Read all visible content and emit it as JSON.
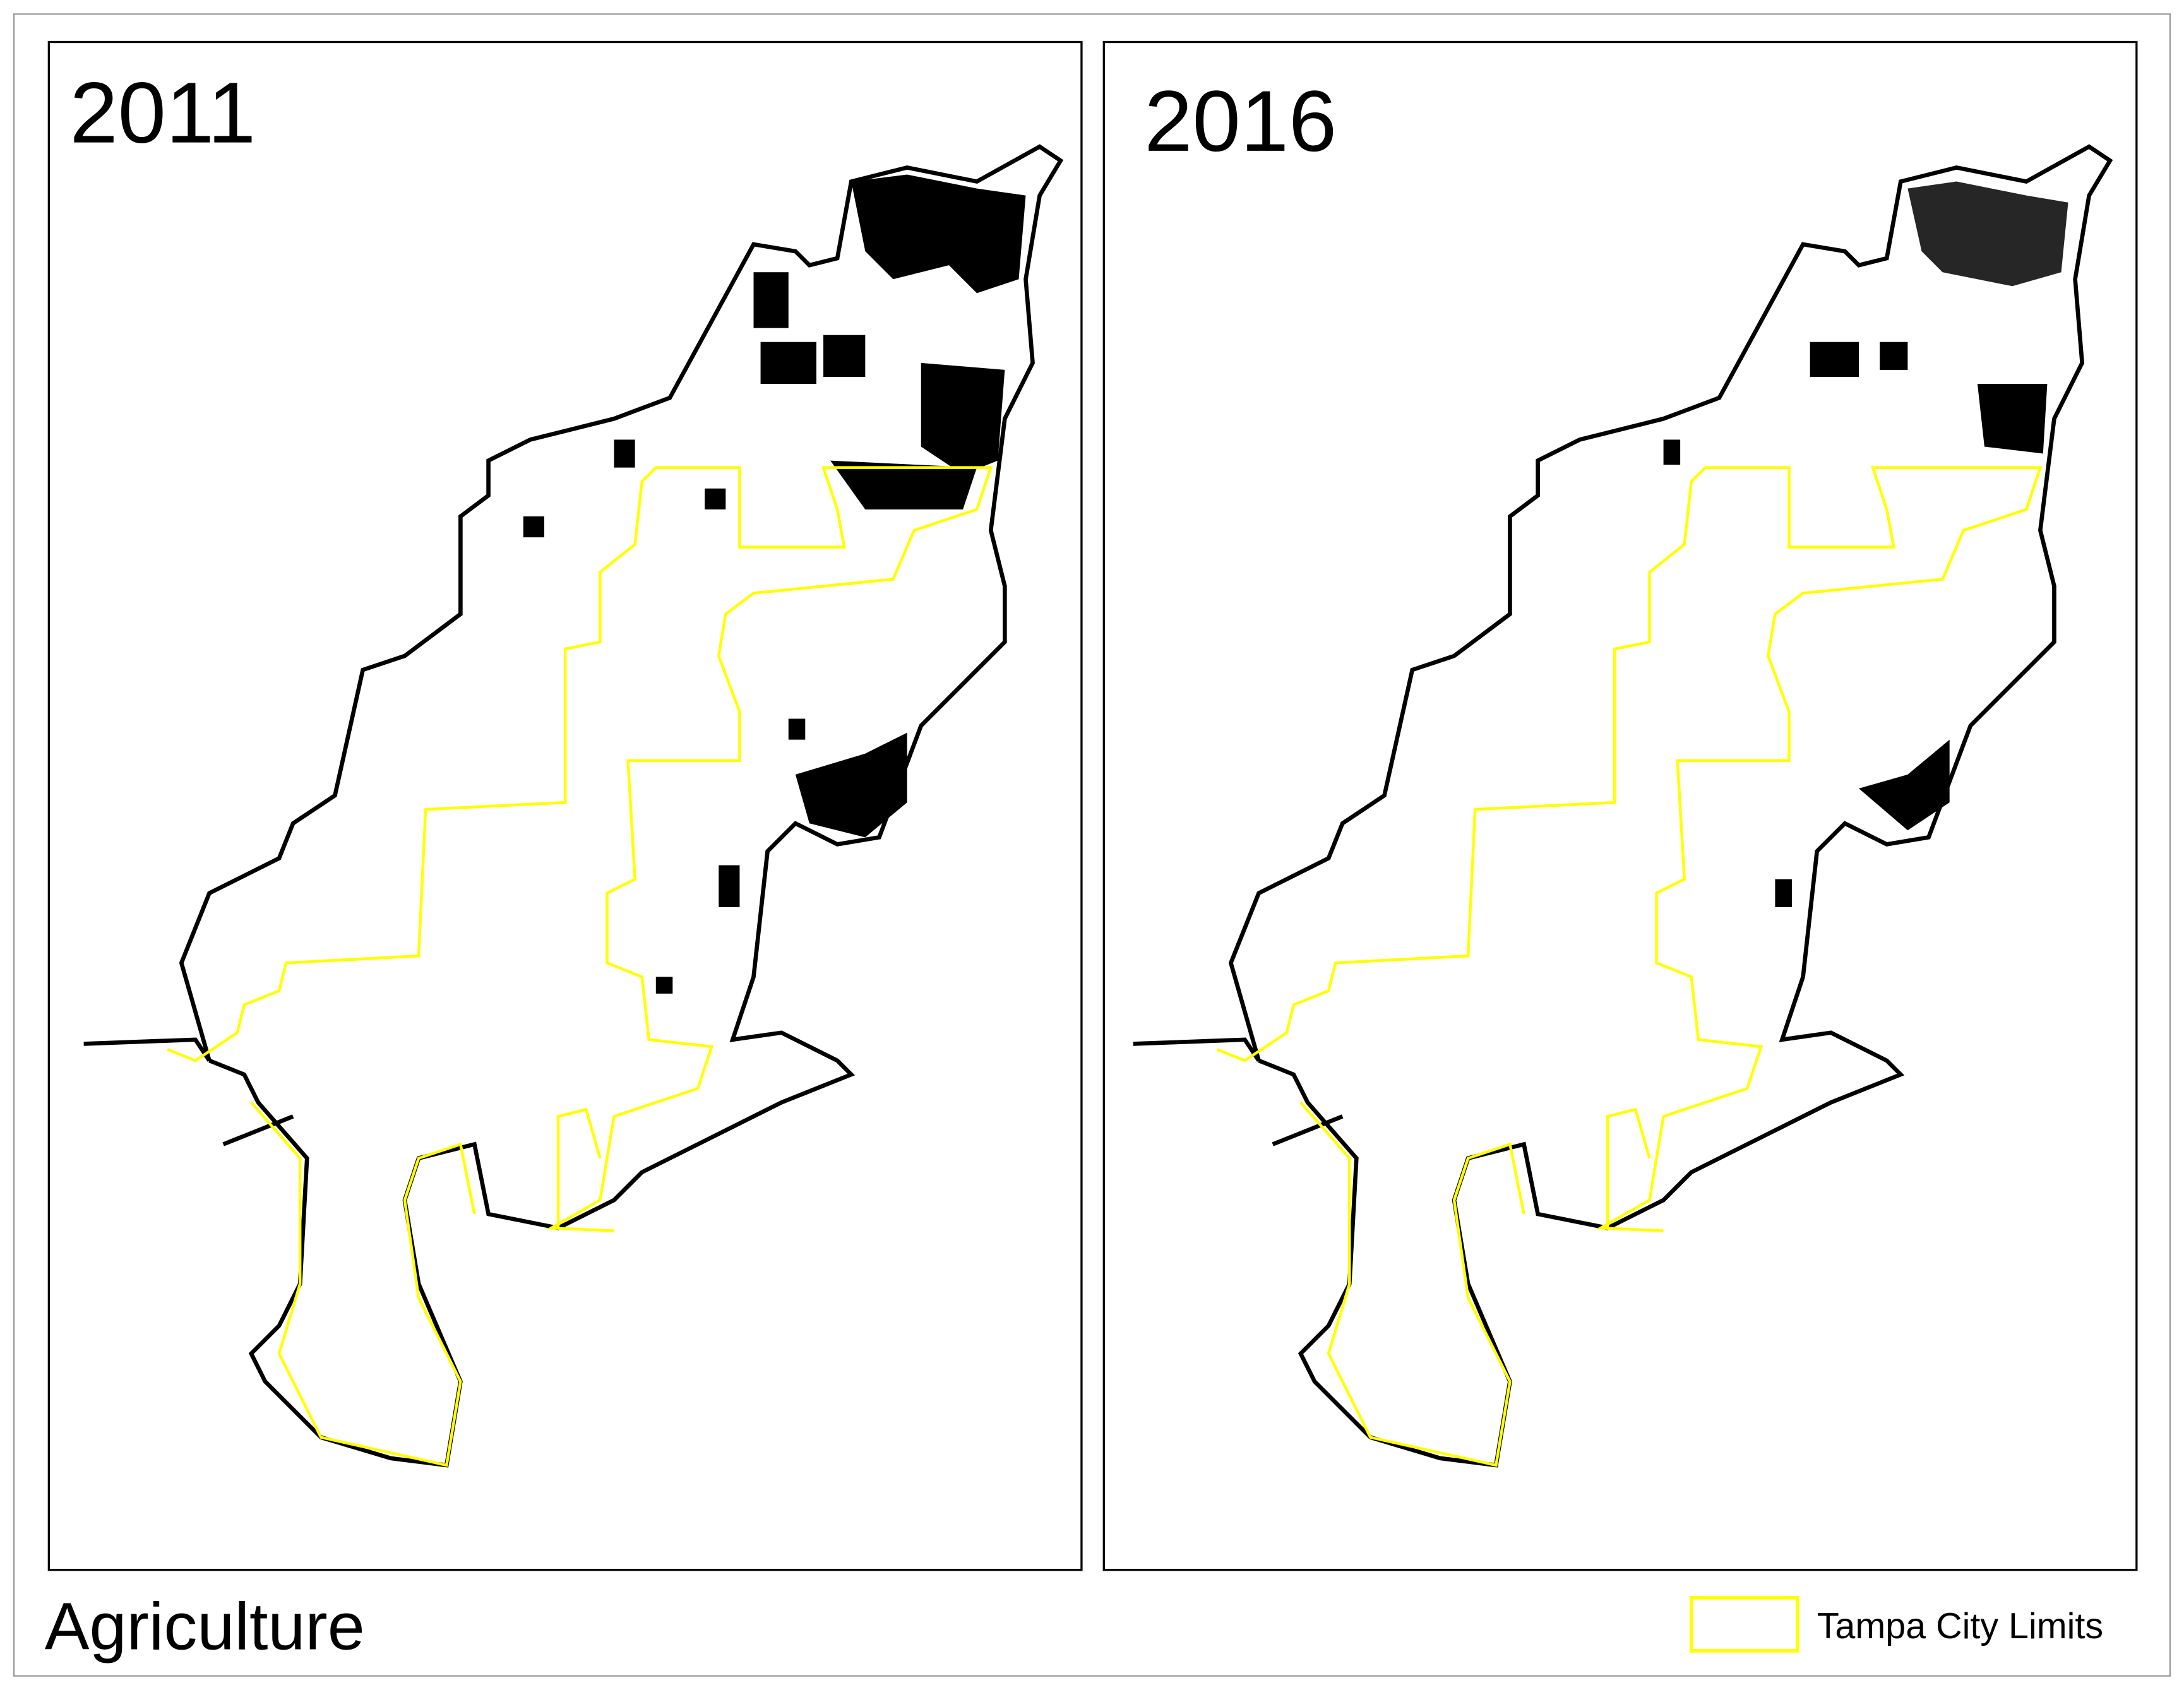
{
  "panels": [
    {
      "title": "2011"
    },
    {
      "title": "2016"
    }
  ],
  "footer": {
    "title": "Agriculture"
  },
  "legend": {
    "label": "Tampa City Limits"
  }
}
